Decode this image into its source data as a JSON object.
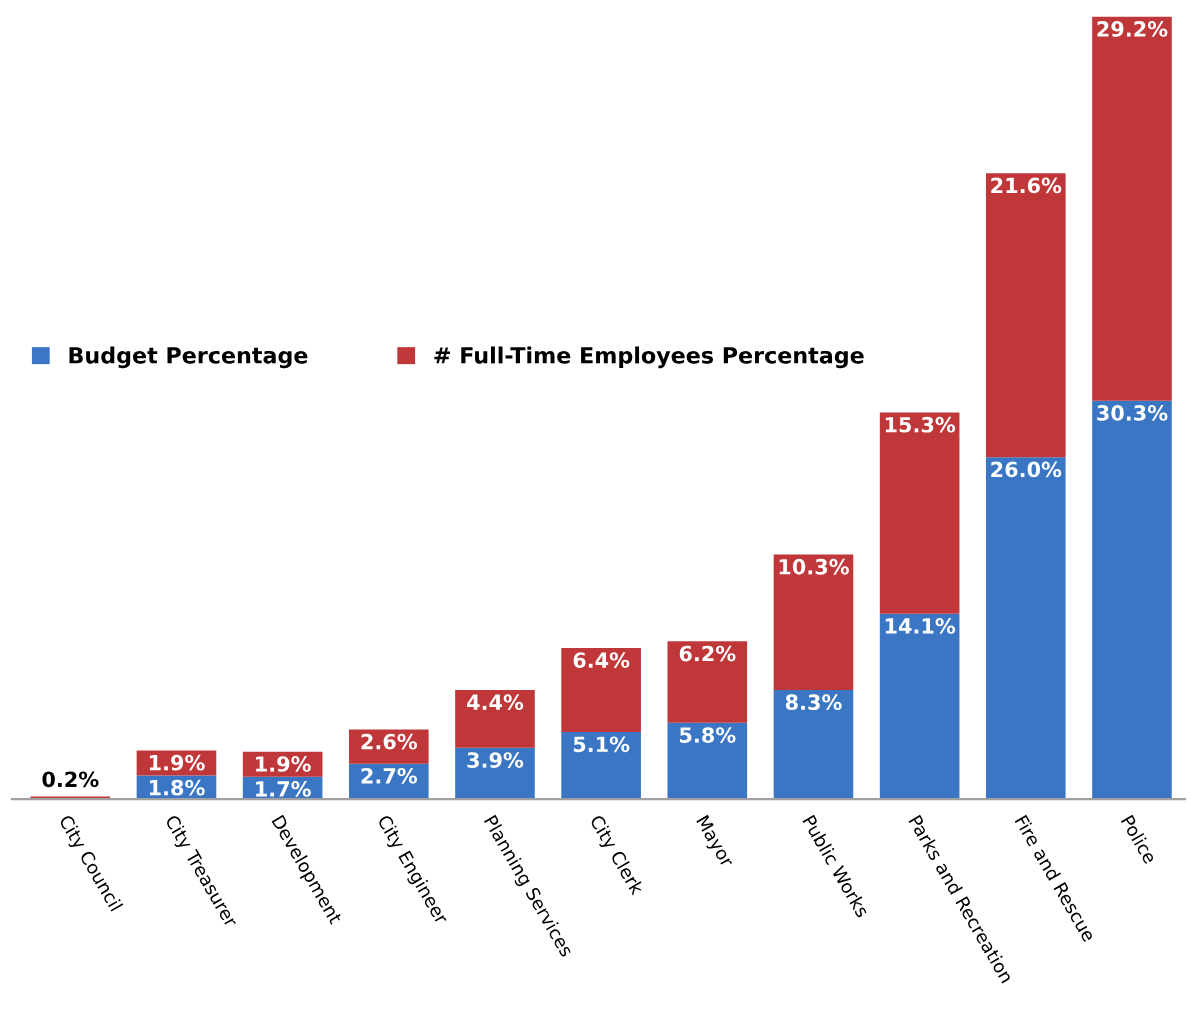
{
  "chart_data": {
    "type": "bar",
    "stacked": true,
    "categories": [
      "City Council",
      "City Treasurer",
      "Development",
      "City Engineer",
      "Planning Services",
      "City Clerk",
      "Mayor",
      "Public Works",
      "Parks and Recreation",
      "Fire and Rescue",
      "Police"
    ],
    "series": [
      {
        "name": "Budget Percentage",
        "color": "#3a76c4",
        "values": [
          null,
          1.8,
          1.7,
          2.7,
          3.9,
          5.1,
          5.8,
          8.3,
          14.1,
          26.0,
          30.3
        ],
        "value_labels": [
          null,
          "1.8%",
          "1.7%",
          "2.7%",
          "3.9%",
          "5.1%",
          "5.8%",
          "8.3%",
          "14.1%",
          "26.0%",
          "30.3%"
        ]
      },
      {
        "name": "# Full-Time Employees Percentage",
        "color": "#c0373a",
        "values": [
          0.2,
          1.9,
          1.9,
          2.6,
          4.4,
          6.4,
          6.2,
          10.3,
          15.3,
          21.6,
          29.2
        ],
        "value_labels": [
          "0.2%",
          "1.9%",
          "1.9%",
          "2.6%",
          "4.4%",
          "6.4%",
          "6.2%",
          "10.3%",
          "15.3%",
          "21.6%",
          "29.2%"
        ]
      }
    ],
    "legend": "center left",
    "grid": false
  }
}
